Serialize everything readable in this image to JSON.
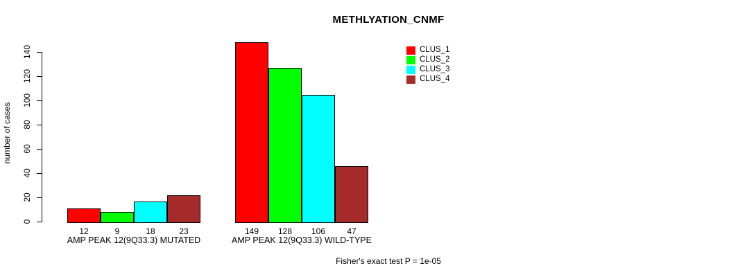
{
  "page": {
    "background_color": "#FFFFFF",
    "text_color": "#000000"
  },
  "footnote": "Fisher's exact test P = 1e-05",
  "chart_data": {
    "type": "bar",
    "title": "METHLYATION_CNMF",
    "xlabel": "",
    "ylabel": "number of cases",
    "ylim": [
      0,
      140
    ],
    "yticks": [
      0,
      20,
      40,
      60,
      80,
      100,
      120,
      140
    ],
    "grid": false,
    "bar_border_color": "#000000",
    "legend_position": "top-right",
    "legend_entries": [
      "CLUS_1",
      "CLUS_2",
      "CLUS_3",
      "CLUS_4"
    ],
    "categories": [
      "AMP PEAK 12(9Q33.3) MUTATED",
      "AMP PEAK 12(9Q33.3) WILD-TYPE"
    ],
    "series": [
      {
        "name": "CLUS_1",
        "color": "#FF0000",
        "values": [
          12,
          149
        ]
      },
      {
        "name": "CLUS_2",
        "color": "#00FF00",
        "values": [
          9,
          128
        ]
      },
      {
        "name": "CLUS_3",
        "color": "#00FFFF",
        "values": [
          18,
          106
        ]
      },
      {
        "name": "CLUS_4",
        "color": "#A52A2A",
        "values": [
          23,
          47
        ]
      }
    ],
    "bar_value_labels": {
      "AMP PEAK 12(9Q33.3) MUTATED": [
        12,
        9,
        18,
        23
      ],
      "AMP PEAK 12(9Q33.3) WILD-TYPE": [
        149,
        128,
        106,
        47
      ]
    }
  }
}
